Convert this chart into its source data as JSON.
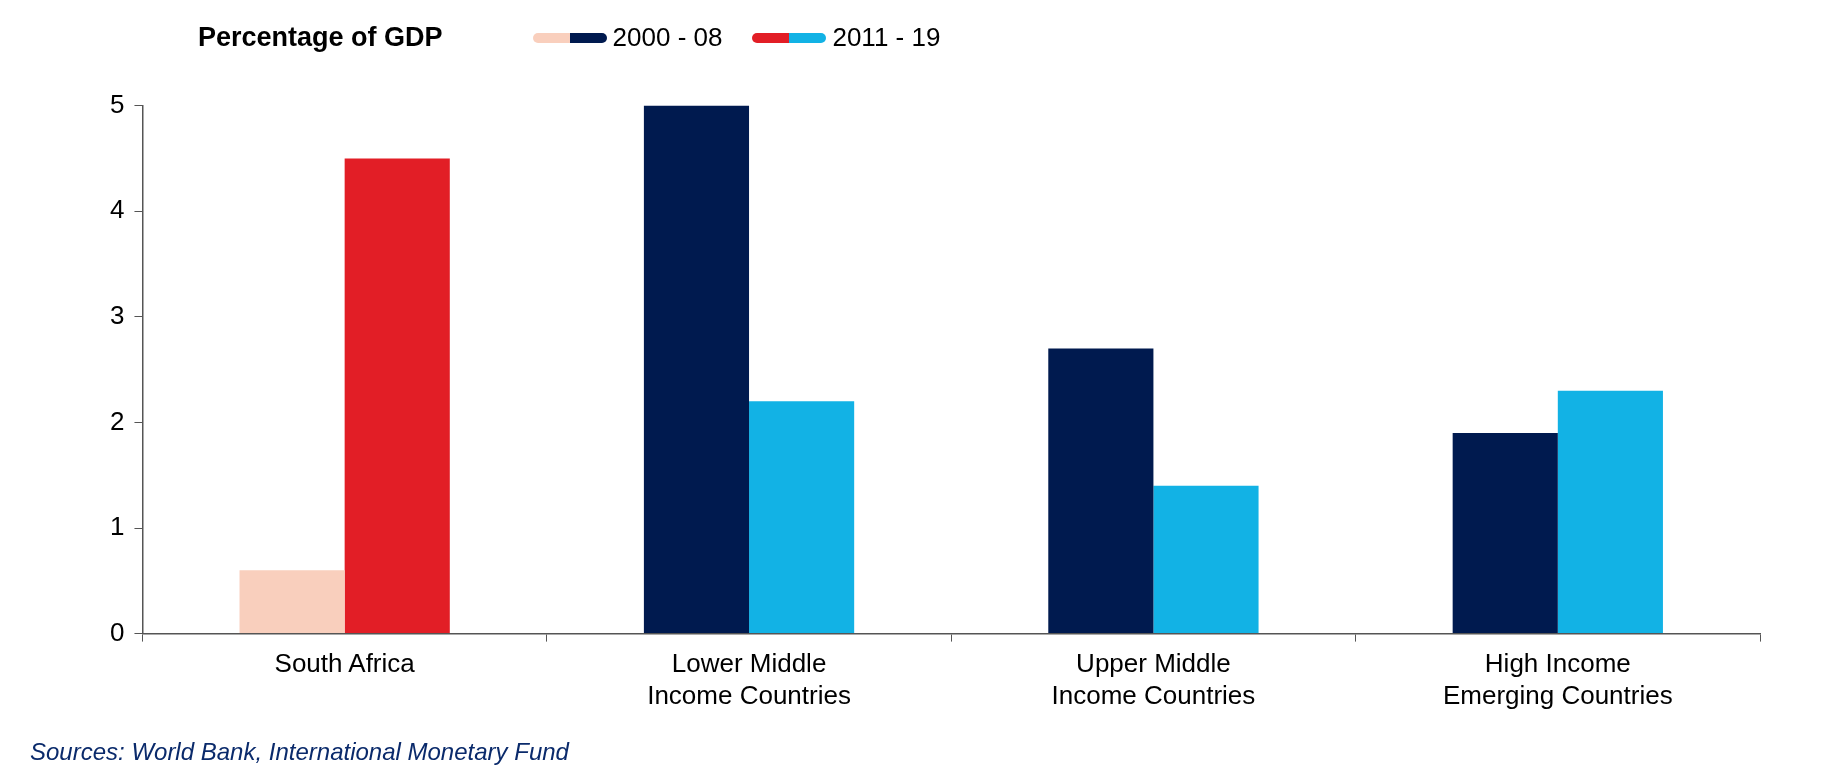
{
  "chart_data": {
    "type": "bar",
    "title": "Percentage of GDP",
    "categories": [
      "South Africa",
      "Lower Middle\nIncome Countries",
      "Upper Middle\nIncome Countries",
      "High Income\nEmerging Countries"
    ],
    "series": [
      {
        "name": "2000 - 08",
        "colors": [
          "#f9cfbd",
          "#001a4f",
          "#001a4f",
          "#001a4f"
        ],
        "values": [
          0.6,
          5.0,
          2.7,
          1.9
        ]
      },
      {
        "name": "2011 - 19",
        "colors": [
          "#e21e26",
          "#12b2e5",
          "#12b2e5",
          "#12b2e5"
        ],
        "values": [
          4.5,
          2.2,
          1.4,
          2.3
        ]
      }
    ],
    "ylim": [
      0,
      5
    ],
    "yticks": [
      0,
      1,
      2,
      3,
      4,
      5
    ],
    "grid": false,
    "legend": "top",
    "annotations": [
      "Sources: World Bank, International Monetary Fund"
    ]
  }
}
